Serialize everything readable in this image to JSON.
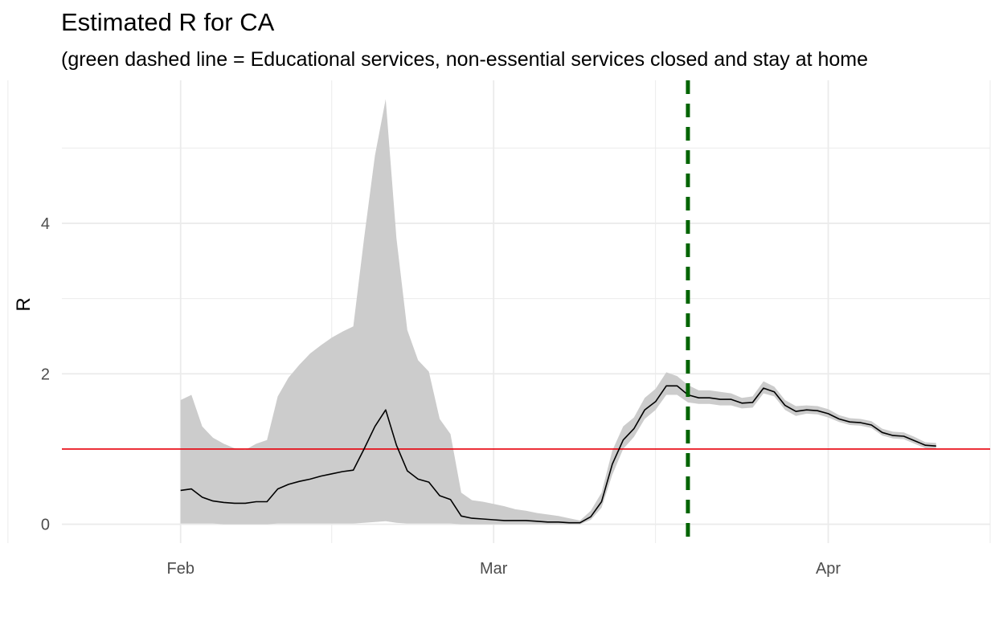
{
  "chart_data": {
    "type": "line",
    "title": "Estimated R for CA",
    "subtitle": "(green dashed line = Educational services, non-essential services closed and stay at home",
    "xlabel": "",
    "ylabel": "R",
    "x_start": "2020-01-21",
    "xlim": [
      "2020-01-21",
      "2020-04-16"
    ],
    "ylim": [
      -0.25,
      5.9
    ],
    "x_ticks": [
      {
        "date": "2020-02-01",
        "label": "Feb"
      },
      {
        "date": "2020-03-01",
        "label": "Mar"
      },
      {
        "date": "2020-04-01",
        "label": "Apr"
      }
    ],
    "x_minor_ticks": [
      "2020-01-16",
      "2020-02-15",
      "2020-03-16",
      "2020-04-16"
    ],
    "y_ticks": [
      0,
      2,
      4
    ],
    "y_minor_ticks": [
      1,
      3,
      5
    ],
    "grid": true,
    "reference_line": {
      "y": 1,
      "color": "#e8000b"
    },
    "intervention": {
      "date": "2020-03-19",
      "color": "#006400"
    },
    "colors": {
      "estimate": "#000000",
      "ribbon": "#cccccc",
      "grid": "#ebebeb"
    },
    "series": [
      {
        "x": [
          "2020-02-01",
          "2020-02-02",
          "2020-02-03",
          "2020-02-04",
          "2020-02-05",
          "2020-02-06",
          "2020-02-07",
          "2020-02-08",
          "2020-02-09",
          "2020-02-10",
          "2020-02-11",
          "2020-02-12",
          "2020-02-13",
          "2020-02-14",
          "2020-02-15",
          "2020-02-16",
          "2020-02-17",
          "2020-02-18",
          "2020-02-19",
          "2020-02-20",
          "2020-02-21",
          "2020-02-22",
          "2020-02-23",
          "2020-02-24",
          "2020-02-25",
          "2020-02-26",
          "2020-02-27",
          "2020-02-28",
          "2020-02-29",
          "2020-03-01",
          "2020-03-02",
          "2020-03-03",
          "2020-03-04",
          "2020-03-05",
          "2020-03-06",
          "2020-03-07",
          "2020-03-08",
          "2020-03-09",
          "2020-03-10",
          "2020-03-11",
          "2020-03-12",
          "2020-03-13",
          "2020-03-14",
          "2020-03-15",
          "2020-03-16",
          "2020-03-17",
          "2020-03-18",
          "2020-03-19",
          "2020-03-20",
          "2020-03-21",
          "2020-03-22",
          "2020-03-23",
          "2020-03-24",
          "2020-03-25",
          "2020-03-26",
          "2020-03-27",
          "2020-03-28",
          "2020-03-29",
          "2020-03-30",
          "2020-03-31",
          "2020-04-01",
          "2020-04-02",
          "2020-04-03",
          "2020-04-04",
          "2020-04-05",
          "2020-04-06",
          "2020-04-07",
          "2020-04-08",
          "2020-04-09",
          "2020-04-10",
          "2020-04-11"
        ],
        "mean": [
          0.45,
          0.47,
          0.36,
          0.31,
          0.29,
          0.28,
          0.28,
          0.3,
          0.3,
          0.47,
          0.53,
          0.57,
          0.6,
          0.64,
          0.67,
          0.7,
          0.72,
          1.0,
          1.3,
          1.52,
          1.05,
          0.71,
          0.6,
          0.56,
          0.38,
          0.33,
          0.11,
          0.08,
          0.07,
          0.06,
          0.05,
          0.05,
          0.05,
          0.04,
          0.03,
          0.03,
          0.02,
          0.02,
          0.1,
          0.3,
          0.8,
          1.12,
          1.27,
          1.52,
          1.63,
          1.84,
          1.84,
          1.72,
          1.68,
          1.68,
          1.66,
          1.66,
          1.61,
          1.62,
          1.81,
          1.76,
          1.58,
          1.5,
          1.52,
          1.51,
          1.47,
          1.4,
          1.36,
          1.35,
          1.32,
          1.22,
          1.18,
          1.17,
          1.11,
          1.05,
          1.04
        ],
        "lower": [
          0.01,
          0.01,
          0.01,
          0.01,
          0.0,
          0.0,
          0.0,
          0.0,
          0.0,
          0.01,
          0.01,
          0.01,
          0.01,
          0.01,
          0.01,
          0.01,
          0.01,
          0.02,
          0.03,
          0.04,
          0.02,
          0.01,
          0.01,
          0.01,
          0.01,
          0.01,
          0.0,
          0.0,
          0.0,
          0.0,
          0.0,
          0.0,
          0.0,
          0.0,
          0.0,
          0.0,
          0.0,
          0.0,
          0.06,
          0.22,
          0.66,
          1.0,
          1.16,
          1.4,
          1.52,
          1.72,
          1.72,
          1.62,
          1.6,
          1.6,
          1.58,
          1.58,
          1.54,
          1.55,
          1.74,
          1.7,
          1.52,
          1.44,
          1.47,
          1.46,
          1.42,
          1.36,
          1.32,
          1.31,
          1.28,
          1.18,
          1.14,
          1.13,
          1.07,
          1.01,
          1.0
        ],
        "upper": [
          1.65,
          1.72,
          1.3,
          1.15,
          1.07,
          1.01,
          0.99,
          1.07,
          1.12,
          1.7,
          1.95,
          2.12,
          2.27,
          2.38,
          2.48,
          2.56,
          2.63,
          3.8,
          4.9,
          5.65,
          3.8,
          2.58,
          2.18,
          2.03,
          1.4,
          1.2,
          0.42,
          0.32,
          0.3,
          0.27,
          0.24,
          0.2,
          0.18,
          0.15,
          0.13,
          0.11,
          0.08,
          0.05,
          0.18,
          0.42,
          0.98,
          1.3,
          1.42,
          1.68,
          1.8,
          2.02,
          1.97,
          1.85,
          1.78,
          1.78,
          1.76,
          1.74,
          1.68,
          1.7,
          1.9,
          1.83,
          1.65,
          1.57,
          1.58,
          1.57,
          1.53,
          1.45,
          1.41,
          1.4,
          1.37,
          1.27,
          1.23,
          1.22,
          1.16,
          1.09,
          1.08
        ]
      }
    ]
  }
}
